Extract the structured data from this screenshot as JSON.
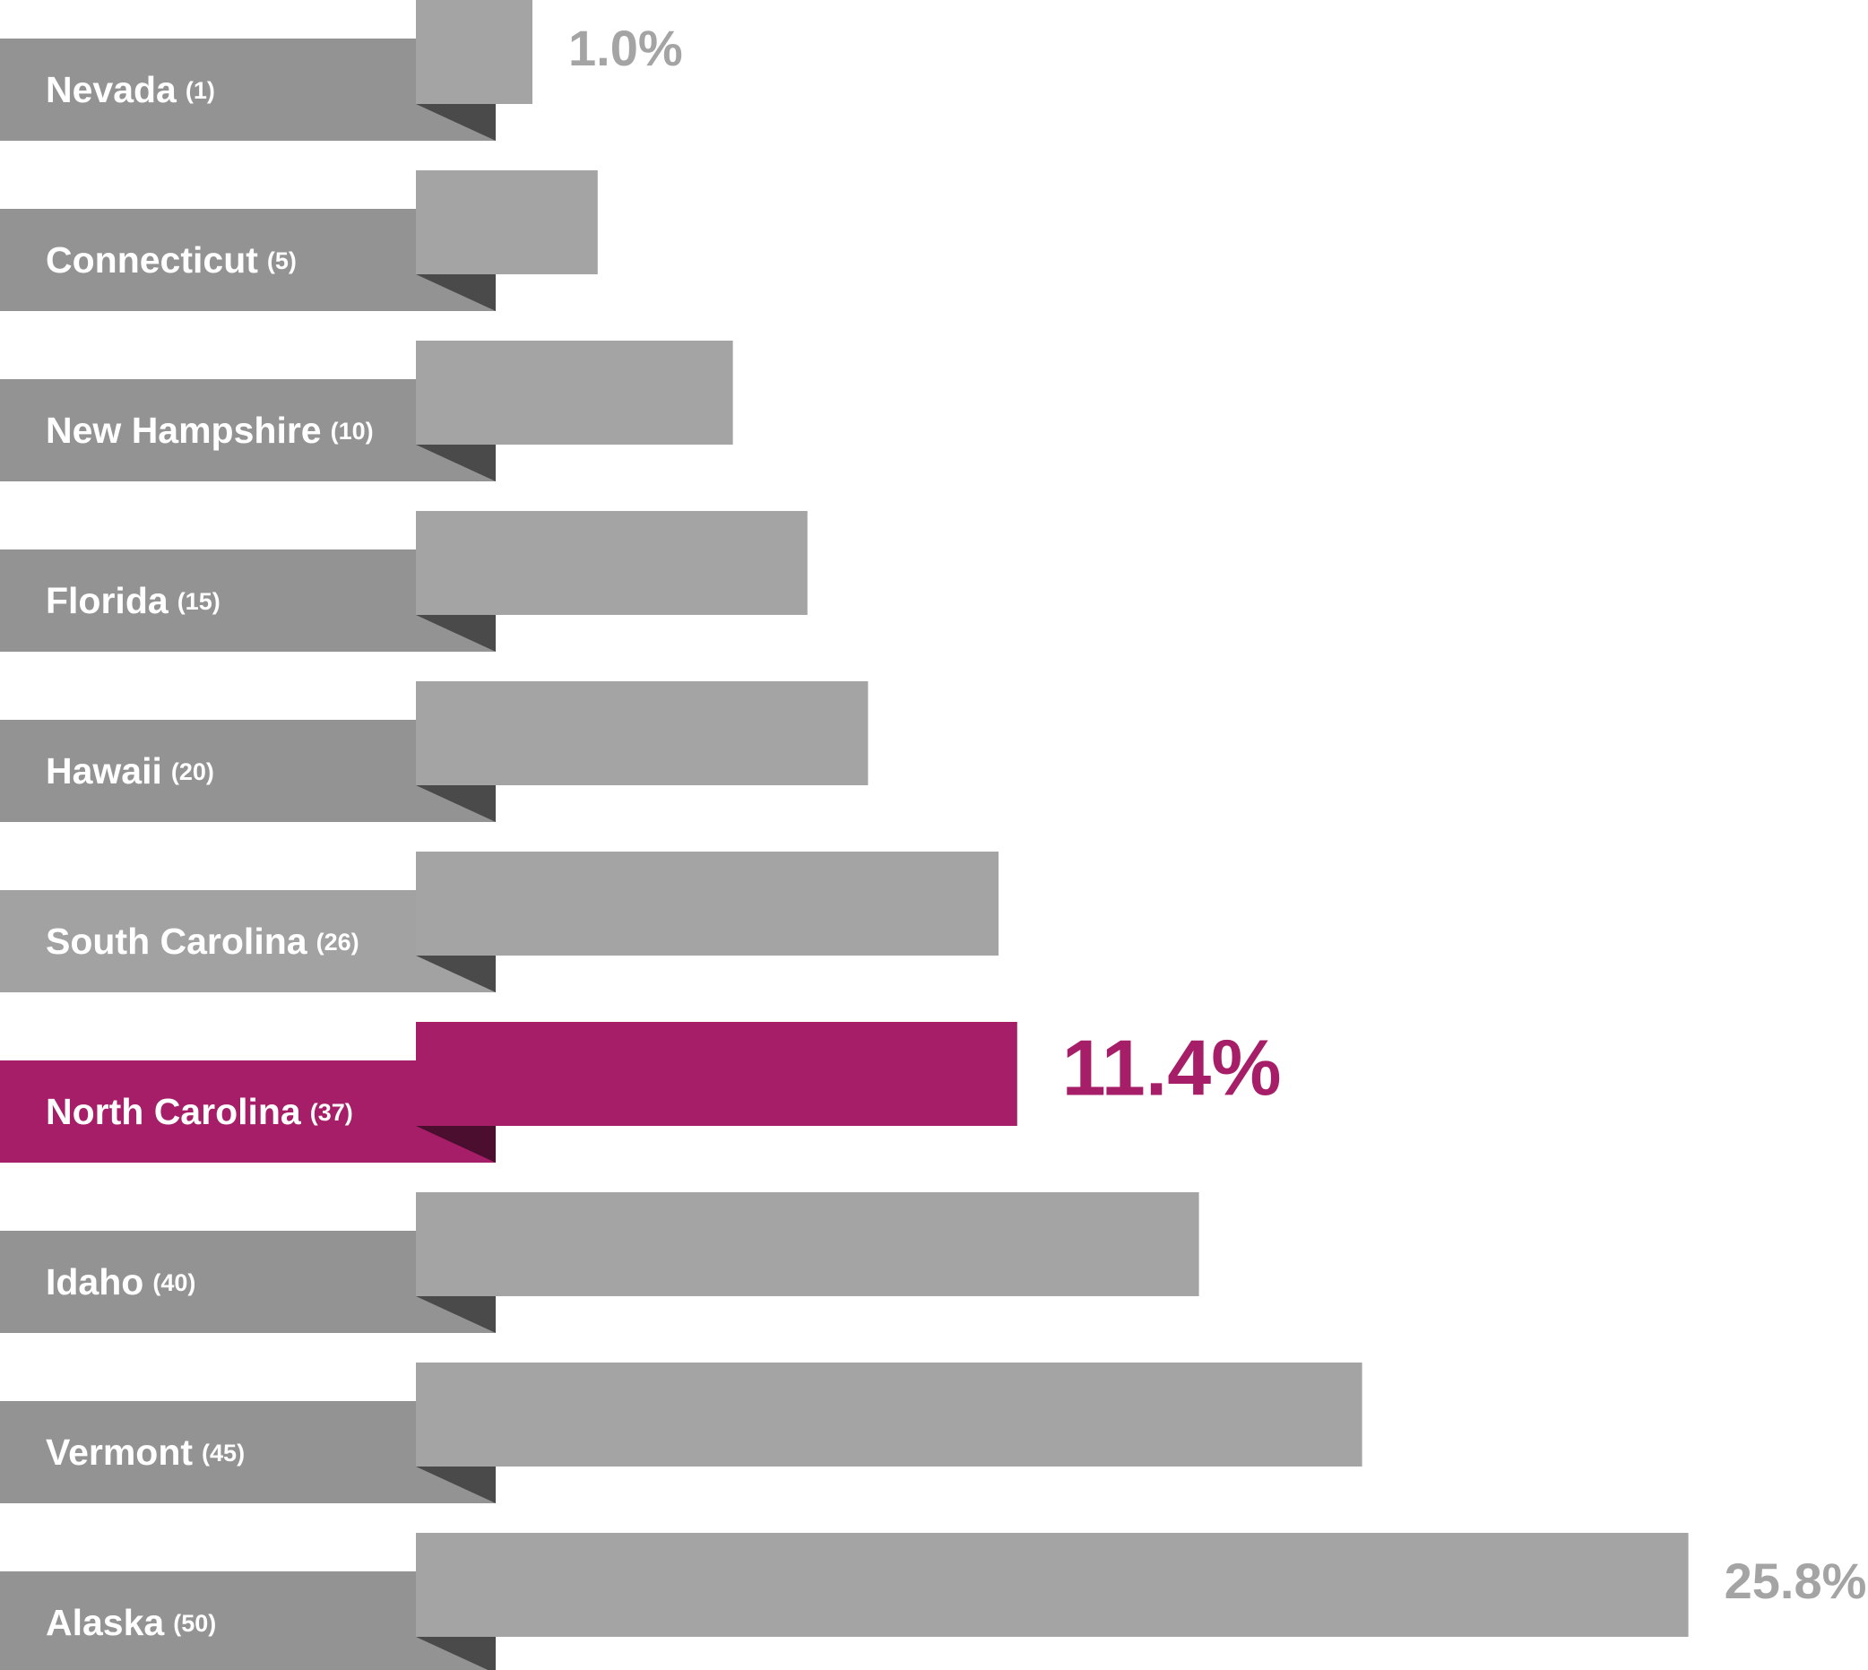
{
  "chart_data": {
    "type": "ribbon-bar",
    "categories": [
      "Nevada",
      "Connecticut",
      "New Hampshire",
      "Florida",
      "Hawaii",
      "South Carolina",
      "North Carolina",
      "Idaho",
      "Vermont",
      "Alaska"
    ],
    "ranks": [
      "(1)",
      "(5)",
      "(10)",
      "(15)",
      "(20)",
      "(26)",
      "(37)",
      "(40)",
      "(45)",
      "(50)"
    ],
    "values": [
      1.0,
      2.4,
      5.3,
      6.9,
      8.2,
      11.0,
      11.4,
      15.3,
      18.8,
      25.8
    ],
    "value_labels": [
      "1.0%",
      null,
      null,
      null,
      null,
      null,
      "11.4%",
      null,
      null,
      "25.8%"
    ],
    "colors": [
      "#a4a4a4",
      "#a4a4a4",
      "#a4a4a4",
      "#a4a4a4",
      "#a4a4a4",
      "#a4a4a4",
      "#a61e68",
      "#a4a4a4",
      "#a4a4a4",
      "#a4a4a4"
    ],
    "panel_colors": [
      "#939393",
      "#939393",
      "#939393",
      "#939393",
      "#939393",
      "#a2a2a2",
      "#a61e68",
      "#939393",
      "#939393",
      "#939393"
    ],
    "xlim": [
      -1.5,
      28
    ]
  }
}
